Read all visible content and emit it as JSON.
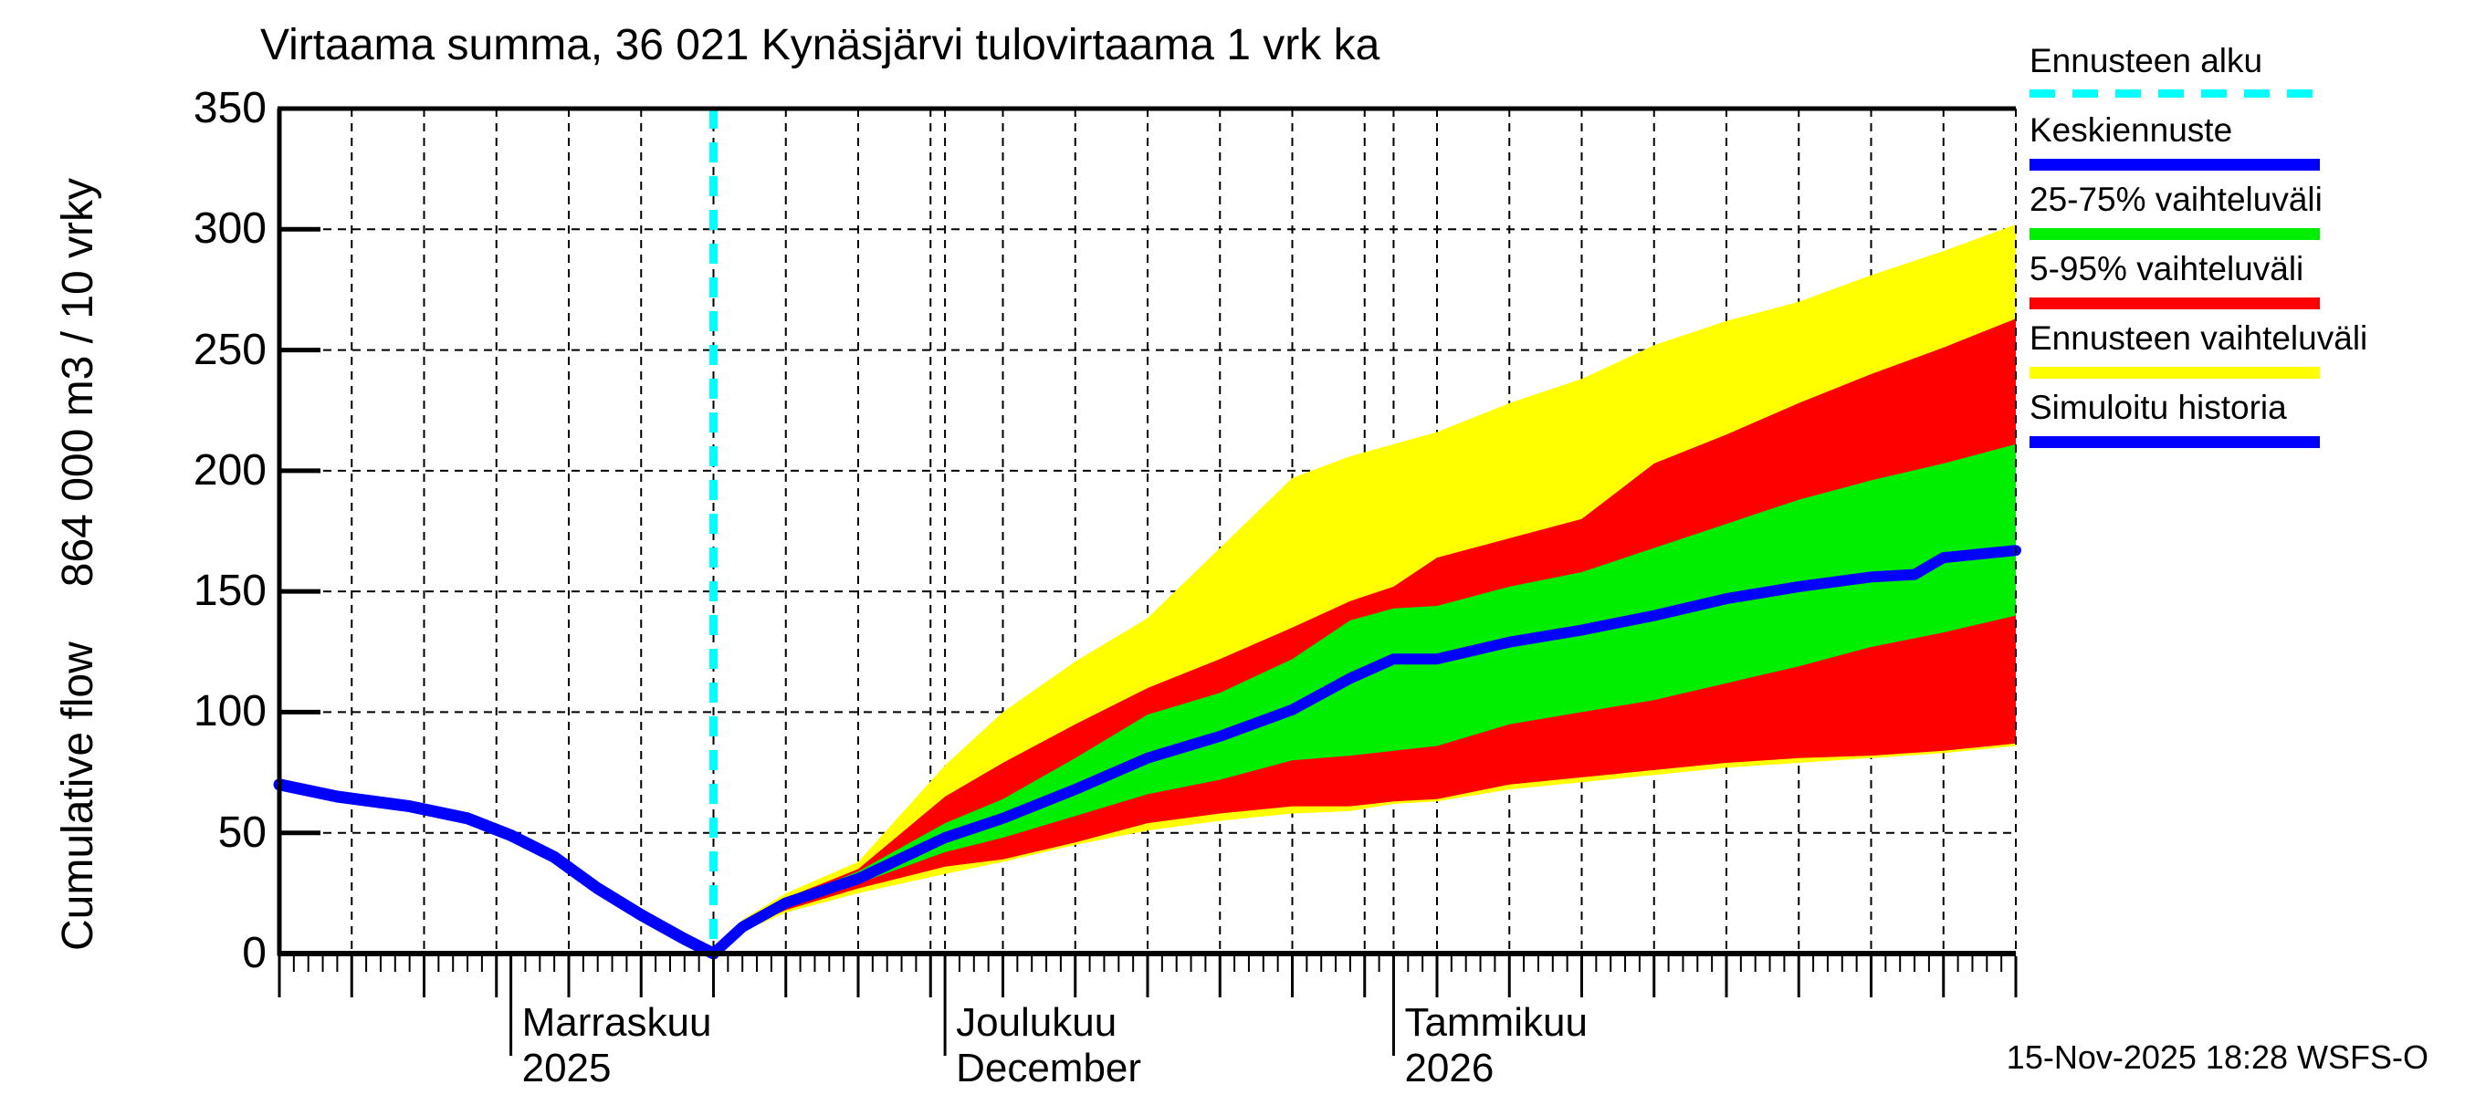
{
  "title": "Virtaama summa, 36 021 Kynäsjärvi tulovirtaama 1 vrk ka",
  "datestamp": "15-Nov-2025 18:28 WSFS-O",
  "colors": {
    "cyan": "#00ffff",
    "blue": "#0000ff",
    "green": "#00ee00",
    "red": "#ff0000",
    "yellow": "#ffff00",
    "axis": "#000000",
    "background": "#ffffff"
  },
  "y_axis": {
    "label_primary": "Cumulative flow",
    "label_secondary": "864 000 m3 / 10 vrky",
    "ticks": [
      0,
      50,
      100,
      150,
      200,
      250,
      300,
      350
    ],
    "min": 0,
    "max": 350
  },
  "x_axis": {
    "months": [
      {
        "line1": "Marraskuu",
        "line2": "2025",
        "day": -14
      },
      {
        "line1": "Joulukuu",
        "line2": "December",
        "day": 16
      },
      {
        "line1": "Tammikuu",
        "line2": "2026",
        "day": 47
      }
    ]
  },
  "legend": [
    {
      "label": "Ennusteen alku",
      "type": "dash",
      "color_key": "cyan"
    },
    {
      "label": "Keskiennuste",
      "type": "bar",
      "color_key": "blue"
    },
    {
      "label": "25-75% vaihteluväli",
      "type": "bar",
      "color_key": "green"
    },
    {
      "label": "5-95% vaihteluväli",
      "type": "bar",
      "color_key": "red"
    },
    {
      "label": "Ennusteen vaihteluväli",
      "type": "bar",
      "color_key": "yellow"
    },
    {
      "label": "Simuloitu historia",
      "type": "bar",
      "color_key": "blue"
    }
  ],
  "chart_data": {
    "type": "area",
    "title": "Virtaama summa, 36 021 Kynäsjärvi tulovirtaama 1 vrk ka",
    "xlabel": "",
    "ylabel": "Cumulative flow 864 000 m3 / 10 vrky",
    "ylim": [
      0,
      350
    ],
    "grid": true,
    "legend_position": "right-outside",
    "x_unit": "days relative to forecast start 15-Nov-2025 (history from 16-Oct-2025, forecast to mid-Feb-2026)",
    "history_line": {
      "name": "Simuloitu historia",
      "color_key": "blue",
      "points": [
        [
          -30,
          70
        ],
        [
          -26,
          65
        ],
        [
          -21,
          61
        ],
        [
          -17,
          56
        ],
        [
          -14,
          49
        ],
        [
          -11,
          40
        ],
        [
          -8,
          27
        ],
        [
          -5,
          16
        ],
        [
          -2,
          6
        ],
        [
          0,
          0
        ]
      ]
    },
    "forecast_start": {
      "name": "Ennusteen alku",
      "day": 0,
      "color_key": "cyan"
    },
    "bands": [
      {
        "name": "Ennusteen vaihteluväli",
        "color_key": "yellow",
        "points": [
          [
            0,
            0,
            0
          ],
          [
            2,
            9,
            14
          ],
          [
            5,
            17,
            25
          ],
          [
            10,
            25,
            38
          ],
          [
            16,
            33,
            78
          ],
          [
            20,
            38,
            100
          ],
          [
            25,
            45,
            121
          ],
          [
            30,
            51,
            139
          ],
          [
            35,
            55,
            168
          ],
          [
            40,
            58,
            197
          ],
          [
            44,
            59,
            206
          ],
          [
            47,
            62,
            211
          ],
          [
            50,
            63,
            216
          ],
          [
            55,
            68,
            228
          ],
          [
            60,
            71,
            238
          ],
          [
            65,
            74,
            252
          ],
          [
            70,
            77,
            262
          ],
          [
            75,
            79,
            270
          ],
          [
            80,
            81,
            281
          ],
          [
            85,
            83,
            291
          ],
          [
            90,
            86,
            302
          ]
        ]
      },
      {
        "name": "5-95% vaihteluväli",
        "color_key": "red",
        "points": [
          [
            0,
            0,
            0
          ],
          [
            2,
            10,
            13
          ],
          [
            5,
            18,
            23
          ],
          [
            10,
            27,
            35
          ],
          [
            16,
            36,
            65
          ],
          [
            20,
            39,
            79
          ],
          [
            25,
            46,
            95
          ],
          [
            30,
            54,
            110
          ],
          [
            35,
            58,
            122
          ],
          [
            40,
            61,
            135
          ],
          [
            44,
            61,
            146
          ],
          [
            47,
            63,
            152
          ],
          [
            50,
            64,
            164
          ],
          [
            55,
            70,
            172
          ],
          [
            60,
            73,
            180
          ],
          [
            65,
            76,
            203
          ],
          [
            70,
            79,
            215
          ],
          [
            75,
            81,
            228
          ],
          [
            80,
            82,
            240
          ],
          [
            85,
            84,
            251
          ],
          [
            90,
            87,
            263
          ]
        ]
      },
      {
        "name": "25-75% vaihteluväli",
        "color_key": "green",
        "points": [
          [
            0,
            0,
            0
          ],
          [
            2,
            10,
            13
          ],
          [
            5,
            19,
            22
          ],
          [
            10,
            29,
            34
          ],
          [
            16,
            42,
            54
          ],
          [
            20,
            48,
            64
          ],
          [
            25,
            57,
            81
          ],
          [
            30,
            66,
            99
          ],
          [
            35,
            72,
            108
          ],
          [
            40,
            80,
            122
          ],
          [
            44,
            82,
            138
          ],
          [
            47,
            84,
            143
          ],
          [
            50,
            86,
            144
          ],
          [
            55,
            95,
            152
          ],
          [
            60,
            100,
            158
          ],
          [
            65,
            105,
            168
          ],
          [
            70,
            112,
            178
          ],
          [
            75,
            119,
            188
          ],
          [
            80,
            127,
            196
          ],
          [
            85,
            133,
            203
          ],
          [
            90,
            140,
            211
          ]
        ]
      }
    ],
    "median_line": {
      "name": "Keskiennuste",
      "color_key": "blue",
      "points": [
        [
          0,
          0
        ],
        [
          2,
          11
        ],
        [
          5,
          21
        ],
        [
          10,
          31
        ],
        [
          16,
          48
        ],
        [
          20,
          56
        ],
        [
          25,
          68
        ],
        [
          30,
          81
        ],
        [
          35,
          90
        ],
        [
          40,
          101
        ],
        [
          44,
          114
        ],
        [
          47,
          122
        ],
        [
          50,
          122
        ],
        [
          55,
          129
        ],
        [
          60,
          134
        ],
        [
          65,
          140
        ],
        [
          70,
          147
        ],
        [
          75,
          152
        ],
        [
          80,
          156
        ],
        [
          83,
          157
        ],
        [
          85,
          164
        ],
        [
          90,
          167
        ]
      ]
    },
    "gridlines": {
      "y_values": [
        50,
        100,
        150,
        200,
        250,
        300
      ],
      "x_day_start": -25,
      "x_day_end": 90,
      "x_day_step": 5,
      "x_month_days": [
        16,
        47
      ]
    },
    "axis_ticks": {
      "x_minor_step_days": 1,
      "x_medium_step_days": 5,
      "x_month_tick_days": [
        -14,
        16,
        47
      ]
    }
  }
}
